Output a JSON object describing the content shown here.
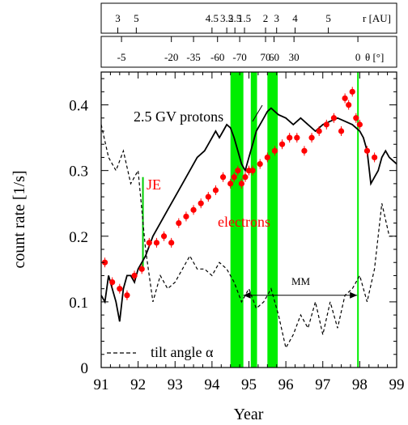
{
  "chart_data": {
    "type": "line",
    "title": "",
    "xlabel": "Year",
    "ylabel": "count rate [1/s]",
    "xlim": [
      91,
      99
    ],
    "ylim": [
      0,
      0.45
    ],
    "x_ticks": [
      "91",
      "92",
      "93",
      "94",
      "95",
      "96",
      "97",
      "98",
      "99"
    ],
    "y_ticks": [
      "0",
      "0.1",
      "0.2",
      "0.3",
      "0.4"
    ],
    "top_axis_r": {
      "label": "r [AU]",
      "ticks": [
        {
          "year": 91.45,
          "label": "3"
        },
        {
          "year": 91.95,
          "label": "5"
        },
        {
          "year": 94.0,
          "label": "4.5"
        },
        {
          "year": 94.4,
          "label": "3.5"
        },
        {
          "year": 94.62,
          "label": "2.5"
        },
        {
          "year": 94.88,
          "label": "1.5"
        },
        {
          "year": 95.45,
          "label": "2"
        },
        {
          "year": 95.75,
          "label": "3"
        },
        {
          "year": 96.25,
          "label": "4"
        },
        {
          "year": 97.15,
          "label": "5"
        }
      ]
    },
    "top_axis_theta": {
      "label": "θ [°]",
      "ticks": [
        {
          "year": 91.55,
          "label": "-5"
        },
        {
          "year": 92.9,
          "label": "-20"
        },
        {
          "year": 93.5,
          "label": "-35"
        },
        {
          "year": 94.15,
          "label": "-60"
        },
        {
          "year": 94.75,
          "label": "-70"
        },
        {
          "year": 95.45,
          "label": "70"
        },
        {
          "year": 95.68,
          "label": "60"
        },
        {
          "year": 96.22,
          "label": "30"
        },
        {
          "year": 97.95,
          "label": "0"
        }
      ]
    },
    "vertical_bands": [
      [
        94.5,
        94.85
      ],
      [
        95.05,
        95.22
      ],
      [
        95.5,
        95.78
      ],
      [
        97.93,
        97.97
      ]
    ],
    "annotations": {
      "je": {
        "text": "JE",
        "x": 92.13
      },
      "mm": {
        "text": "MM",
        "x_from": 94.85,
        "x_to": 97.93,
        "y": 0.11
      }
    },
    "series": [
      {
        "name": "2.5 GV protons",
        "style": "solid",
        "color": "#000000",
        "x": [
          91.0,
          91.1,
          91.2,
          91.3,
          91.4,
          91.5,
          91.6,
          91.7,
          91.8,
          91.9,
          92.0,
          92.2,
          92.4,
          92.6,
          92.8,
          93.0,
          93.2,
          93.4,
          93.6,
          93.8,
          94.0,
          94.1,
          94.2,
          94.3,
          94.4,
          94.5,
          94.6,
          94.7,
          94.8,
          94.9,
          95.0,
          95.1,
          95.2,
          95.3,
          95.4,
          95.5,
          95.6,
          95.7,
          95.8,
          96.0,
          96.2,
          96.4,
          96.6,
          96.8,
          97.0,
          97.2,
          97.4,
          97.6,
          97.8,
          98.0,
          98.1,
          98.2,
          98.3,
          98.4,
          98.5,
          98.6,
          98.7,
          98.8,
          99.0
        ],
        "y": [
          0.11,
          0.1,
          0.14,
          0.12,
          0.1,
          0.07,
          0.12,
          0.14,
          0.14,
          0.13,
          0.15,
          0.17,
          0.2,
          0.22,
          0.24,
          0.26,
          0.28,
          0.3,
          0.32,
          0.33,
          0.35,
          0.36,
          0.35,
          0.36,
          0.37,
          0.365,
          0.35,
          0.33,
          0.31,
          0.3,
          0.32,
          0.34,
          0.36,
          0.37,
          0.38,
          0.39,
          0.395,
          0.39,
          0.385,
          0.38,
          0.37,
          0.38,
          0.37,
          0.36,
          0.37,
          0.375,
          0.38,
          0.375,
          0.37,
          0.36,
          0.35,
          0.33,
          0.28,
          0.29,
          0.3,
          0.32,
          0.33,
          0.32,
          0.31
        ]
      },
      {
        "name": "electrons",
        "style": "points",
        "color": "#ff0000",
        "x": [
          91.1,
          91.3,
          91.5,
          91.7,
          91.9,
          92.1,
          92.3,
          92.5,
          92.7,
          92.9,
          93.1,
          93.3,
          93.5,
          93.7,
          93.9,
          94.1,
          94.3,
          94.5,
          94.6,
          94.7,
          94.8,
          94.9,
          95.0,
          95.1,
          95.3,
          95.5,
          95.7,
          95.9,
          96.1,
          96.3,
          96.5,
          96.7,
          96.9,
          97.1,
          97.3,
          97.5,
          97.6,
          97.7,
          97.8,
          97.9,
          98.0,
          98.2,
          98.4
        ],
        "y": [
          0.16,
          0.13,
          0.12,
          0.11,
          0.14,
          0.15,
          0.19,
          0.19,
          0.2,
          0.19,
          0.22,
          0.23,
          0.24,
          0.25,
          0.26,
          0.27,
          0.29,
          0.28,
          0.29,
          0.3,
          0.28,
          0.29,
          0.3,
          0.3,
          0.31,
          0.32,
          0.33,
          0.34,
          0.35,
          0.35,
          0.33,
          0.35,
          0.36,
          0.37,
          0.38,
          0.36,
          0.41,
          0.4,
          0.42,
          0.38,
          0.37,
          0.33,
          0.32
        ]
      },
      {
        "name": "tilt angle α",
        "style": "dashed",
        "color": "#000000",
        "x": [
          91.0,
          91.2,
          91.4,
          91.6,
          91.8,
          92.0,
          92.2,
          92.4,
          92.6,
          92.8,
          93.0,
          93.2,
          93.4,
          93.6,
          93.8,
          94.0,
          94.2,
          94.4,
          94.6,
          94.8,
          95.0,
          95.2,
          95.4,
          95.6,
          95.8,
          96.0,
          96.2,
          96.4,
          96.6,
          96.8,
          97.0,
          97.2,
          97.4,
          97.6,
          97.8,
          98.0,
          98.2,
          98.4,
          98.6,
          98.8,
          99.0
        ],
        "y": [
          0.37,
          0.32,
          0.3,
          0.33,
          0.28,
          0.3,
          0.18,
          0.1,
          0.14,
          0.12,
          0.13,
          0.15,
          0.17,
          0.15,
          0.15,
          0.14,
          0.16,
          0.15,
          0.13,
          0.1,
          0.12,
          0.09,
          0.1,
          0.12,
          0.08,
          0.03,
          0.05,
          0.08,
          0.06,
          0.1,
          0.05,
          0.1,
          0.06,
          0.11,
          0.12,
          0.14,
          0.1,
          0.15,
          0.25,
          0.2,
          0.2
        ]
      }
    ],
    "labels": {
      "protons": "2.5 GV protons",
      "electrons": "electrons",
      "tilt_legend": "tilt angle α"
    },
    "grid": false,
    "colors": {
      "bands": "#00ee00",
      "electrons": "#ff0000",
      "axes": "#000000"
    }
  }
}
